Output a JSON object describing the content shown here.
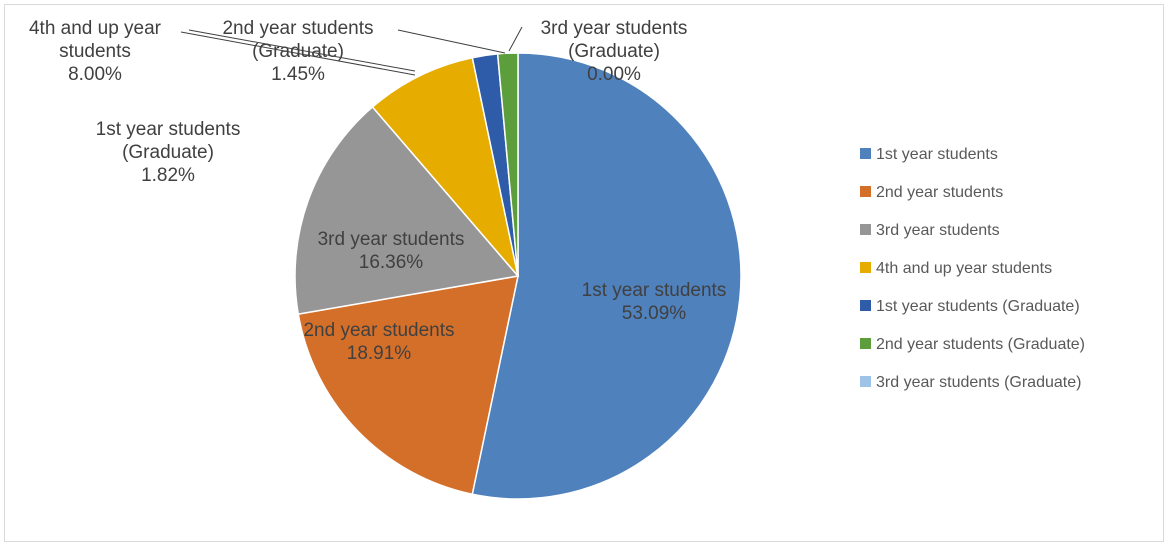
{
  "chart_data": {
    "type": "pie",
    "series": [
      {
        "values": [
          53.09,
          18.91,
          16.36,
          8.0,
          1.82,
          1.45,
          0.0
        ]
      }
    ],
    "categories": [
      "1st year students",
      "2nd year students",
      "3rd year students",
      "4th and up year students",
      "1st year students (Graduate)",
      "2nd year students (Graduate)",
      "3rd year students (Graduate)"
    ],
    "data_labels": [
      [
        "1st year students",
        "53.09%"
      ],
      [
        "2nd year students",
        "18.91%"
      ],
      [
        "3rd year students",
        "16.36%"
      ],
      [
        "4th and up year",
        "students",
        "8.00%"
      ],
      [
        "1st year students",
        "(Graduate)",
        "1.82%"
      ],
      [
        "2nd year students",
        "(Graduate)",
        "1.45%"
      ],
      [
        "3rd year students",
        "(Graduate)",
        "0.00%"
      ]
    ],
    "colors": [
      "#4f81bd",
      "#d46f2a",
      "#969696",
      "#e6ac00",
      "#2e5ca9",
      "#5d9e3c",
      "#9dc3e6"
    ],
    "legend_position": "right",
    "title": ""
  }
}
